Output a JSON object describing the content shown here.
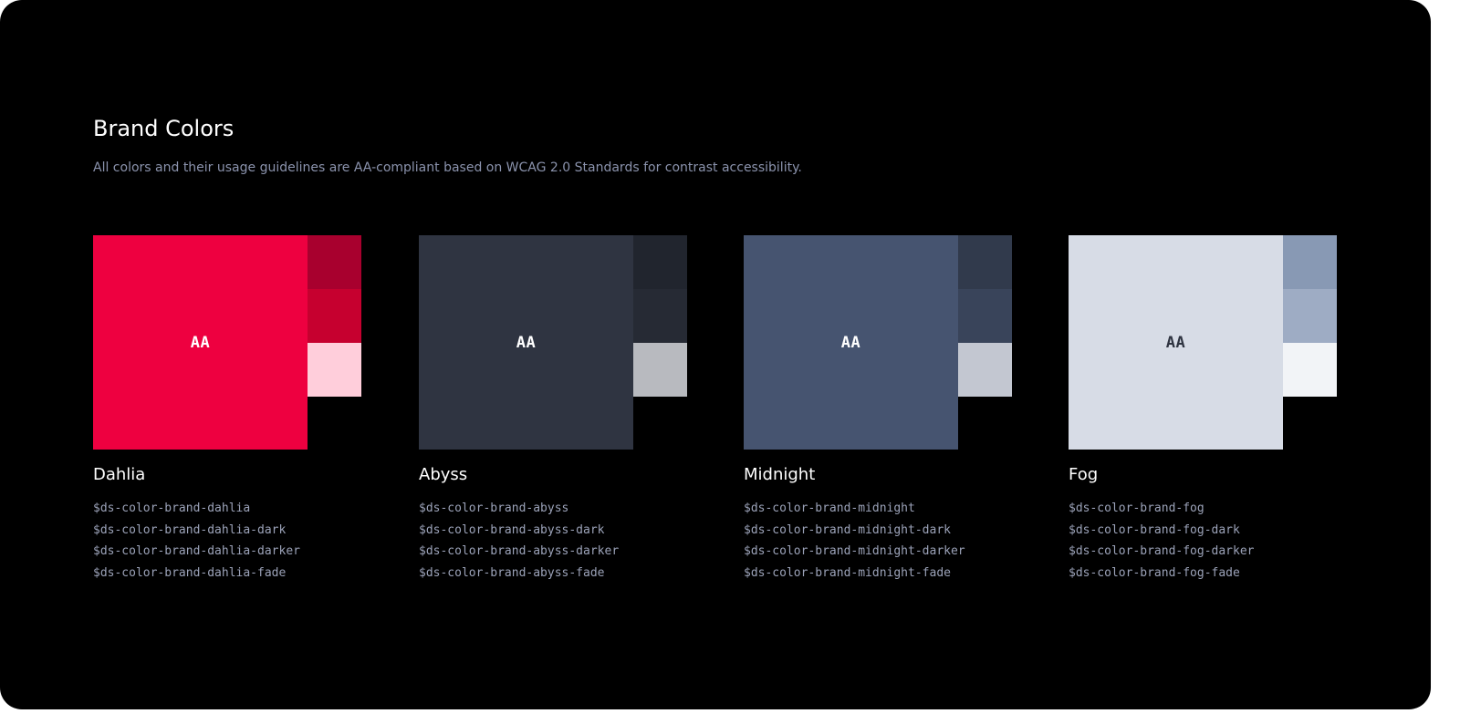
{
  "header": {
    "title": "Brand Colors",
    "subtitle": "All colors and their usage guidelines are AA-compliant based on WCAG 2.0 Standards for contrast accessibility."
  },
  "colors": [
    {
      "name": "Dahlia",
      "badge": "AA",
      "main": "#ee0040",
      "dark": "#a8002e",
      "darker": "#c6002f",
      "fade": "#ffcedb",
      "badge_color": "#ffffff",
      "tokens": [
        "$ds-color-brand-dahlia",
        "$ds-color-brand-dahlia-dark",
        "$ds-color-brand-dahlia-darker",
        "$ds-color-brand-dahlia-fade"
      ]
    },
    {
      "name": "Abyss",
      "badge": "AA",
      "main": "#2f3441",
      "dark": "#21252e",
      "darker": "#262a34",
      "fade": "#b8babf",
      "badge_color": "#ffffff",
      "tokens": [
        "$ds-color-brand-abyss",
        "$ds-color-brand-abyss-dark",
        "$ds-color-brand-abyss-darker",
        "$ds-color-brand-abyss-fade"
      ]
    },
    {
      "name": "Midnight",
      "badge": "AA",
      "main": "#465470",
      "dark": "#313a4c",
      "darker": "#39445a",
      "fade": "#c3c7d1",
      "badge_color": "#ffffff",
      "tokens": [
        "$ds-color-brand-midnight",
        "$ds-color-brand-midnight-dark",
        "$ds-color-brand-midnight-darker",
        "$ds-color-brand-midnight-fade"
      ]
    },
    {
      "name": "Fog",
      "badge": "AA",
      "main": "#d7dce6",
      "dark": "#8899b4",
      "darker": "#9eacc4",
      "fade": "#f2f4f7",
      "badge_color": "#2f3441",
      "tokens": [
        "$ds-color-brand-fog",
        "$ds-color-brand-fog-dark",
        "$ds-color-brand-fog-darker",
        "$ds-color-brand-fog-fade"
      ]
    }
  ]
}
